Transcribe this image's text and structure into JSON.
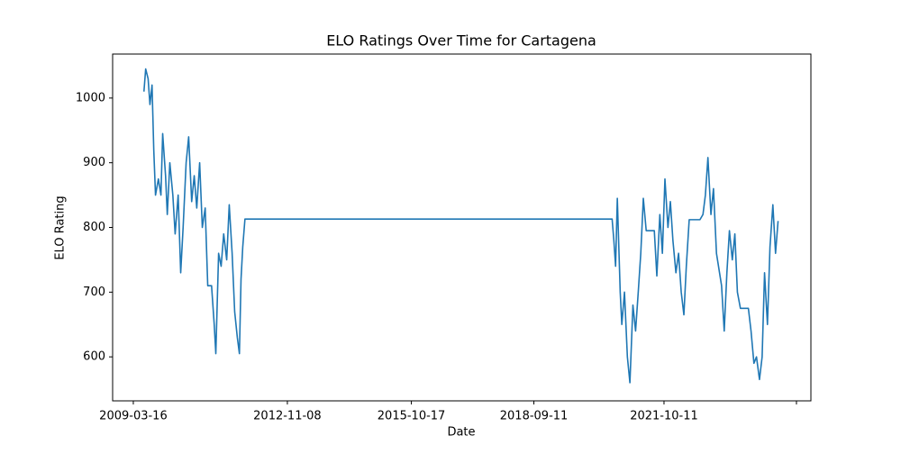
{
  "chart_data": {
    "type": "line",
    "title": "ELO Ratings Over Time for Cartagena",
    "x_label": "Date",
    "y_label": "ELO Rating",
    "xlim": [
      "2008-09-18",
      "2025-04-04"
    ],
    "xticks": [
      "2009-03-16",
      "2012-11-08",
      "2015-10-17",
      "2018-09-11",
      "2021-10-11",
      {
        "value": "2024-11-30",
        "label": null
      }
    ],
    "ylim": [
      532,
      1068
    ],
    "yticks": [
      600,
      700,
      800,
      900,
      1000
    ],
    "grid": false,
    "x": [
      "2009-06-16",
      "2009-07-01",
      "2009-07-22",
      "2009-08-07",
      "2009-08-25",
      "2009-09-09",
      "2009-09-24",
      "2009-10-19",
      "2009-11-10",
      "2009-11-25",
      "2009-12-20",
      "2010-01-04",
      "2010-01-26",
      "2010-02-21",
      "2010-03-13",
      "2010-04-08",
      "2010-04-30",
      "2010-05-21",
      "2010-06-16",
      "2010-07-08",
      "2010-08-03",
      "2010-08-25",
      "2010-09-16",
      "2010-10-11",
      "2010-11-03",
      "2010-11-28",
      "2010-12-20",
      "2011-01-22",
      "2011-02-14",
      "2011-02-28",
      "2011-03-24",
      "2011-04-15",
      "2011-05-07",
      "2011-06-02",
      "2011-06-24",
      "2011-07-19",
      "2011-08-10",
      "2011-09-02",
      "2011-09-20",
      "2011-10-04",
      "2011-10-19",
      "2011-11-07",
      "2020-07-19",
      "2020-08-03",
      "2020-08-18",
      "2020-09-02",
      "2020-09-27",
      "2020-10-11",
      "2020-11-03",
      "2020-11-28",
      "2020-12-20",
      "2021-01-15",
      "2021-02-07",
      "2021-03-02",
      "2021-03-24",
      "2021-04-15",
      "2021-05-10",
      "2021-07-19",
      "2021-08-10",
      "2021-09-05",
      "2021-09-27",
      "2021-10-19",
      "2021-11-14",
      "2021-12-05",
      "2021-12-27",
      "2022-01-22",
      "2022-02-14",
      "2022-03-09",
      "2022-04-01",
      "2022-04-22",
      "2022-05-17",
      "2022-08-18",
      "2022-09-13",
      "2022-10-04",
      "2022-10-26",
      "2022-11-21",
      "2022-12-13",
      "2023-01-08",
      "2023-01-30",
      "2023-02-21",
      "2023-03-16",
      "2023-04-08",
      "2023-04-30",
      "2023-05-25",
      "2023-06-16",
      "2023-07-08",
      "2023-08-03",
      "2023-10-11",
      "2023-11-03",
      "2023-11-28",
      "2023-12-20",
      "2024-01-15",
      "2024-02-07",
      "2024-02-28",
      "2024-03-24",
      "2024-04-15",
      "2024-05-10",
      "2024-06-02",
      "2024-06-24"
    ],
    "series": [
      {
        "name": "Cartagena",
        "color": "#1f77b4",
        "values": [
          1010,
          1045,
          1030,
          990,
          1020,
          920,
          850,
          875,
          850,
          945,
          880,
          820,
          900,
          850,
          790,
          850,
          730,
          800,
          900,
          940,
          840,
          880,
          830,
          900,
          800,
          830,
          710,
          710,
          650,
          605,
          760,
          740,
          790,
          750,
          835,
          760,
          670,
          630,
          605,
          720,
          770,
          813,
          813,
          780,
          740,
          845,
          700,
          650,
          700,
          600,
          560,
          680,
          640,
          700,
          760,
          845,
          795,
          795,
          725,
          820,
          760,
          875,
          800,
          840,
          780,
          730,
          760,
          700,
          665,
          740,
          812,
          812,
          820,
          850,
          908,
          820,
          860,
          760,
          735,
          710,
          640,
          730,
          795,
          750,
          790,
          700,
          675,
          675,
          640,
          590,
          600,
          565,
          600,
          730,
          650,
          770,
          835,
          760,
          810
        ]
      }
    ]
  }
}
